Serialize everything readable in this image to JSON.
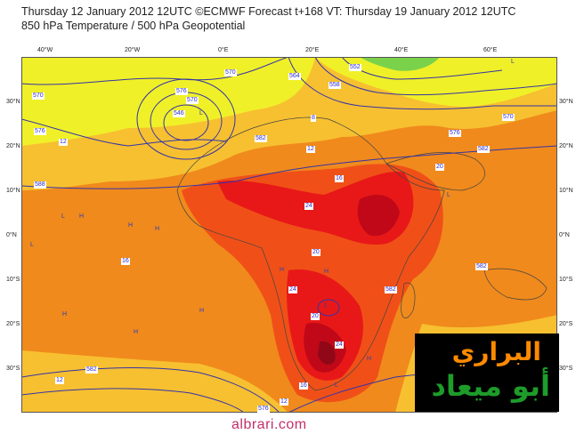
{
  "header": {
    "line1": "Thursday 12 January 2012 12UTC ©ECMWF Forecast t+168 VT: Thursday 19 January 2012 12UTC",
    "line2": "850 hPa Temperature / 500 hPa Geopotential"
  },
  "axes": {
    "lat_labels": [
      "30°N",
      "20°N",
      "10°N",
      "0°N",
      "10°S",
      "20°S",
      "30°S"
    ],
    "lon_labels": [
      "40°W",
      "20°W",
      "0°E",
      "20°E",
      "40°E",
      "60°E"
    ]
  },
  "contour_labels": [
    {
      "text": "576",
      "cls": "geo"
    },
    {
      "text": "570",
      "cls": "geo"
    },
    {
      "text": "564",
      "cls": "geo"
    },
    {
      "text": "558",
      "cls": "geo"
    },
    {
      "text": "552",
      "cls": "geo"
    },
    {
      "text": "546",
      "cls": "geo"
    },
    {
      "text": "582",
      "cls": "geo"
    },
    {
      "text": "588",
      "cls": "geo"
    },
    {
      "text": "8",
      "cls": "temp"
    },
    {
      "text": "12",
      "cls": "temp"
    },
    {
      "text": "16",
      "cls": "temp"
    },
    {
      "text": "20",
      "cls": "temp"
    },
    {
      "text": "24",
      "cls": "temp"
    }
  ],
  "pressure_symbols": {
    "high": "H",
    "low": "L"
  },
  "watermark": "albrari.com",
  "logo": {
    "line1": "البراري",
    "line2": "أبو ميعاد"
  },
  "colors": {
    "yellow": "#f0f028",
    "orange_light": "#f7c030",
    "orange": "#f08a1c",
    "red_orange": "#f05018",
    "red": "#e81818",
    "dark_red": "#c00818",
    "darkest": "#900818",
    "green": "#7ad24a",
    "geo_contour": "#3434a8",
    "logo_orange": "#ff8a00",
    "logo_green": "#1d9c2a"
  }
}
